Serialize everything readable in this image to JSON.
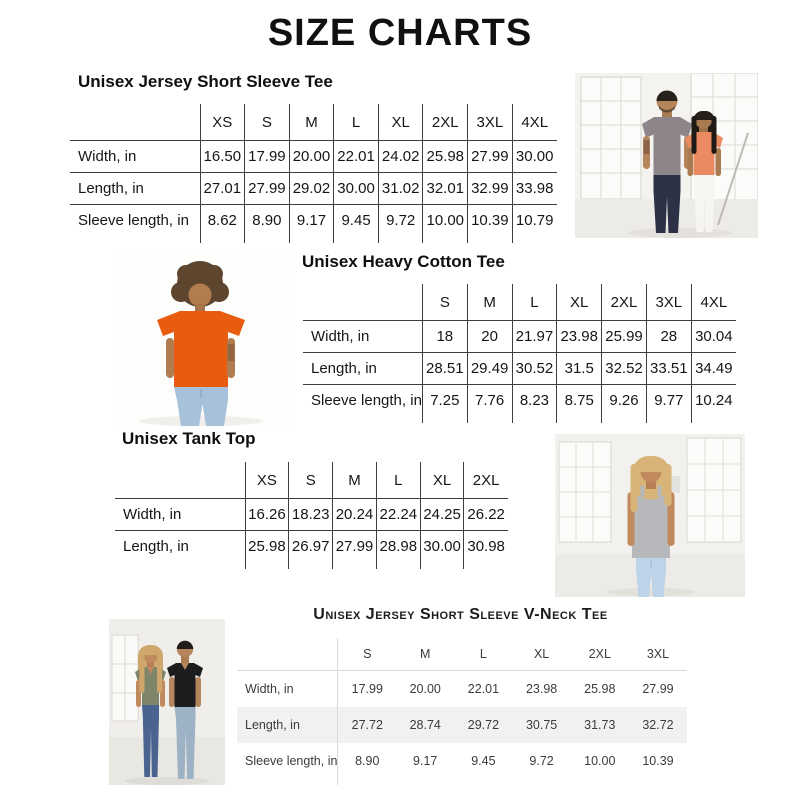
{
  "page": {
    "title": "SIZE CHARTS"
  },
  "sections": [
    {
      "heading": "Unisex Jersey Short Sleeve Tee",
      "columns": [
        "XS",
        "S",
        "M",
        "L",
        "XL",
        "2XL",
        "3XL",
        "4XL"
      ],
      "rows": [
        {
          "label": "Width, in",
          "values": [
            "16.50",
            "17.99",
            "20.00",
            "22.01",
            "24.02",
            "25.98",
            "27.99",
            "30.00"
          ]
        },
        {
          "label": "Length, in",
          "values": [
            "27.01",
            "27.99",
            "29.02",
            "30.00",
            "31.02",
            "32.01",
            "32.99",
            "33.98"
          ]
        },
        {
          "label": "Sleeve length, in",
          "values": [
            "8.62",
            "8.90",
            "9.17",
            "9.45",
            "9.72",
            "10.00",
            "10.39",
            "10.79"
          ]
        }
      ]
    },
    {
      "heading": "Unisex Heavy Cotton Tee",
      "columns": [
        "S",
        "M",
        "L",
        "XL",
        "2XL",
        "3XL",
        "4XL"
      ],
      "rows": [
        {
          "label": "Width, in",
          "values": [
            "18",
            "20",
            "21.97",
            "23.98",
            "25.99",
            "28",
            "30.04"
          ]
        },
        {
          "label": "Length, in",
          "values": [
            "28.51",
            "29.49",
            "30.52",
            "31.5",
            "32.52",
            "33.51",
            "34.49"
          ]
        },
        {
          "label": "Sleeve length, in",
          "values": [
            "7.25",
            "7.76",
            "8.23",
            "8.75",
            "9.26",
            "9.77",
            "10.24"
          ]
        }
      ]
    },
    {
      "heading": "Unisex Tank Top",
      "columns": [
        "XS",
        "S",
        "M",
        "L",
        "XL",
        "2XL"
      ],
      "rows": [
        {
          "label": "Width, in",
          "values": [
            "16.26",
            "18.23",
            "20.24",
            "22.24",
            "24.25",
            "26.22"
          ]
        },
        {
          "label": "Length, in",
          "values": [
            "25.98",
            "26.97",
            "27.99",
            "28.98",
            "30.00",
            "30.98"
          ]
        }
      ]
    },
    {
      "heading": "Unisex Jersey Short Sleeve V-Neck Tee",
      "columns": [
        "S",
        "M",
        "L",
        "XL",
        "2XL",
        "3XL"
      ],
      "rows": [
        {
          "label": "Width, in",
          "values": [
            "17.99",
            "20.00",
            "22.01",
            "23.98",
            "25.98",
            "27.99"
          ]
        },
        {
          "label": "Length, in",
          "values": [
            "27.72",
            "28.74",
            "29.72",
            "30.75",
            "31.73",
            "32.72"
          ]
        },
        {
          "label": "Sleeve length, in",
          "values": [
            "8.90",
            "9.17",
            "9.45",
            "9.72",
            "10.00",
            "10.39"
          ]
        }
      ]
    }
  ],
  "photos": {
    "jersey": {
      "alt": "Man wearing grey crew-neck tee and woman wearing coral tee in a white loft"
    },
    "heavy_cotton": {
      "alt": "Model with curly hair wearing an orange tee and light blue jeans"
    },
    "tank": {
      "alt": "Blonde model wearing a heather grey tank top and light jeans"
    },
    "vneck": {
      "alt": "Woman in sage green v-neck tee and man in black v-neck tee"
    }
  },
  "theme": {
    "rule_dark": "#3d3d3d",
    "rule_light": "#dadada",
    "row_highlight": "#f1f1f1",
    "grey_tee": "#8d858a",
    "coral_tee": "#e98a61",
    "orange_tee": "#e85c10",
    "heather_tank": "#b6b8bb",
    "sage_tee": "#7f8569",
    "black_tee": "#1c1c1e"
  }
}
